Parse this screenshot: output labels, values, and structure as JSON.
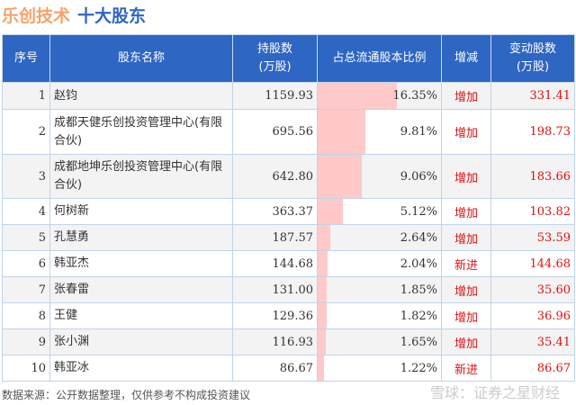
{
  "title": {
    "company": "乐创技术",
    "subject": "十大股东"
  },
  "headers": [
    "序号",
    "股东名称",
    "持股数\n(万股)",
    "占总流通股本比例",
    "增减",
    "变动股数\n(万股)"
  ],
  "colors": {
    "header_bg": "#2e66c3",
    "bar": "#ffc9c9",
    "change": "#e01010"
  },
  "rows": [
    {
      "rank": "1",
      "name": "赵钧",
      "shares": "1159.93",
      "pct": "16.35%",
      "pct_value": 16.35,
      "change": "增加",
      "delta": "331.41"
    },
    {
      "rank": "2",
      "name": "成都天健乐创投资管理中心(有限合伙)",
      "shares": "695.56",
      "pct": "9.81%",
      "pct_value": 9.81,
      "change": "增加",
      "delta": "198.73"
    },
    {
      "rank": "3",
      "name": "成都地坤乐创投资管理中心(有限合伙)",
      "shares": "642.80",
      "pct": "9.06%",
      "pct_value": 9.06,
      "change": "增加",
      "delta": "183.66"
    },
    {
      "rank": "4",
      "name": "何树新",
      "shares": "363.37",
      "pct": "5.12%",
      "pct_value": 5.12,
      "change": "增加",
      "delta": "103.82"
    },
    {
      "rank": "5",
      "name": "孔慧勇",
      "shares": "187.57",
      "pct": "2.64%",
      "pct_value": 2.64,
      "change": "增加",
      "delta": "53.59"
    },
    {
      "rank": "6",
      "name": "韩亚杰",
      "shares": "144.68",
      "pct": "2.04%",
      "pct_value": 2.04,
      "change": "新进",
      "delta": "144.68"
    },
    {
      "rank": "7",
      "name": "张春雷",
      "shares": "131.00",
      "pct": "1.85%",
      "pct_value": 1.85,
      "change": "增加",
      "delta": "35.60"
    },
    {
      "rank": "8",
      "name": "王健",
      "shares": "129.36",
      "pct": "1.82%",
      "pct_value": 1.82,
      "change": "增加",
      "delta": "36.96"
    },
    {
      "rank": "9",
      "name": "张小渊",
      "shares": "116.93",
      "pct": "1.65%",
      "pct_value": 1.65,
      "change": "增加",
      "delta": "35.41"
    },
    {
      "rank": "10",
      "name": "韩亚冰",
      "shares": "86.67",
      "pct": "1.22%",
      "pct_value": 1.22,
      "change": "新进",
      "delta": "86.67"
    }
  ],
  "footer": "数据来源：公开数据整理，仅供参考不构成投资建议",
  "watermark": "雪球：证券之星财经"
}
